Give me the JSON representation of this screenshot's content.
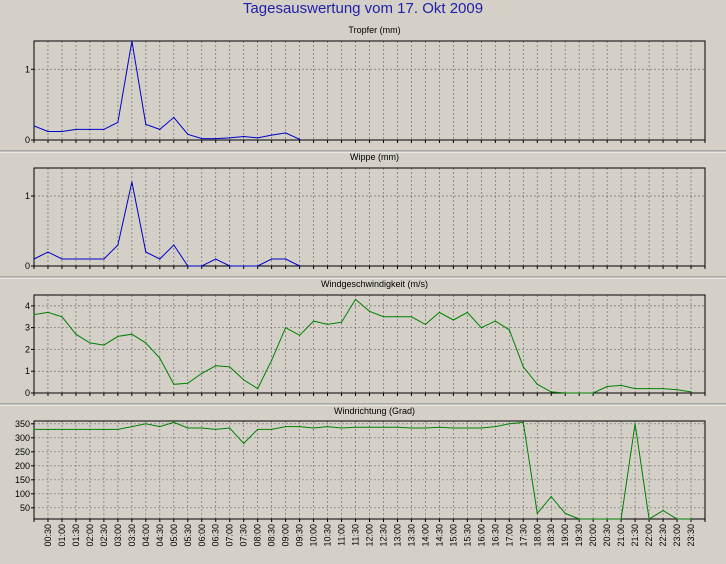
{
  "title": "Tagesauswertung vom 17. Okt 2009",
  "chart_data": [
    {
      "type": "line",
      "title": "Tropfer (mm)",
      "x": [
        "00:00",
        "00:30",
        "01:00",
        "01:30",
        "02:00",
        "02:30",
        "03:00",
        "03:30",
        "04:00",
        "04:30",
        "05:00",
        "05:30",
        "06:00",
        "06:30",
        "07:00",
        "07:30",
        "08:00",
        "08:30",
        "09:00",
        "09:30"
      ],
      "series": [
        {
          "values": [
            0.2,
            0.12,
            0.12,
            0.15,
            0.15,
            0.15,
            0.25,
            1.4,
            0.22,
            0.15,
            0.32,
            0.08,
            0.02,
            0.02,
            0.03,
            0.05,
            0.03,
            0.07,
            0.1,
            0.01
          ]
        }
      ],
      "ylim": [
        0,
        1.4
      ],
      "yticks": [
        "0",
        "1"
      ],
      "ytick_values": [
        0,
        1
      ],
      "color": "#0000c8"
    },
    {
      "type": "line",
      "title": "Wippe (mm)",
      "x": [
        "00:00",
        "00:30",
        "01:00",
        "01:30",
        "02:00",
        "02:30",
        "03:00",
        "03:30",
        "04:00",
        "04:30",
        "05:00",
        "05:30",
        "06:00",
        "06:30",
        "07:00",
        "07:30",
        "08:00",
        "08:30",
        "09:00",
        "09:30"
      ],
      "series": [
        {
          "values": [
            0.1,
            0.2,
            0.1,
            0.1,
            0.1,
            0.1,
            0.3,
            1.2,
            0.2,
            0.1,
            0.3,
            0.0,
            0.0,
            0.1,
            0.0,
            0.0,
            0.0,
            0.1,
            0.1,
            0.0
          ]
        }
      ],
      "ylim": [
        0,
        1.4
      ],
      "yticks": [
        "0",
        "1"
      ],
      "ytick_values": [
        0,
        1
      ],
      "color": "#0000c8"
    },
    {
      "type": "line",
      "title": "Windgeschwindigkeit (m/s)",
      "x": [
        "00:00",
        "00:30",
        "01:00",
        "01:30",
        "02:00",
        "02:30",
        "03:00",
        "03:30",
        "04:00",
        "04:30",
        "05:00",
        "05:30",
        "06:00",
        "06:30",
        "07:00",
        "07:30",
        "08:00",
        "08:30",
        "09:00",
        "09:30",
        "10:00",
        "10:30",
        "11:00",
        "11:30",
        "12:00",
        "12:30",
        "13:00",
        "13:30",
        "14:00",
        "14:30",
        "15:00",
        "15:30",
        "16:00",
        "16:30",
        "17:00",
        "17:30",
        "18:00",
        "18:30",
        "19:00",
        "19:30",
        "20:00",
        "20:30",
        "21:00",
        "21:30",
        "22:00",
        "22:30",
        "23:00",
        "23:30"
      ],
      "series": [
        {
          "values": [
            3.6,
            3.7,
            3.5,
            2.7,
            2.3,
            2.2,
            2.6,
            2.7,
            2.3,
            1.6,
            0.4,
            0.45,
            0.9,
            1.25,
            1.2,
            0.6,
            0.2,
            1.5,
            3.0,
            2.65,
            3.3,
            3.15,
            3.25,
            4.3,
            3.75,
            3.5,
            3.5,
            3.5,
            3.15,
            3.7,
            3.35,
            3.7,
            3.0,
            3.3,
            2.9,
            1.2,
            0.4,
            0.05,
            0.0,
            0.0,
            0.0,
            0.3,
            0.35,
            0.2,
            0.2,
            0.2,
            0.15,
            0.05
          ]
        }
      ],
      "ylim": [
        0,
        4.5
      ],
      "yticks": [
        "0",
        "1",
        "2",
        "3",
        "4"
      ],
      "ytick_values": [
        0,
        1,
        2,
        3,
        4
      ],
      "color": "#008000"
    },
    {
      "type": "line",
      "title": "Windrichtung (Grad)",
      "x": [
        "00:00",
        "00:30",
        "01:00",
        "01:30",
        "02:00",
        "02:30",
        "03:00",
        "03:30",
        "04:00",
        "04:30",
        "05:00",
        "05:30",
        "06:00",
        "06:30",
        "07:00",
        "07:30",
        "08:00",
        "08:30",
        "09:00",
        "09:30",
        "10:00",
        "10:30",
        "11:00",
        "11:30",
        "12:00",
        "12:30",
        "13:00",
        "13:30",
        "14:00",
        "14:30",
        "15:00",
        "15:30",
        "16:00",
        "16:30",
        "17:00",
        "17:30",
        "18:00",
        "18:30",
        "19:00",
        "19:30",
        "20:00",
        "20:30",
        "21:00",
        "21:30",
        "22:00",
        "22:30",
        "23:00",
        "23:30"
      ],
      "series": [
        {
          "values": [
            330,
            330,
            330,
            330,
            330,
            330,
            330,
            340,
            350,
            340,
            355,
            335,
            335,
            330,
            335,
            280,
            330,
            330,
            340,
            340,
            335,
            340,
            335,
            338,
            338,
            338,
            338,
            335,
            335,
            338,
            335,
            335,
            335,
            340,
            350,
            355,
            30,
            90,
            30,
            10,
            10,
            10,
            10,
            350,
            10,
            40,
            10,
            10
          ]
        }
      ],
      "ylim": [
        10,
        360
      ],
      "yticks": [
        "50",
        "100",
        "150",
        "200",
        "250",
        "300",
        "350"
      ],
      "ytick_values": [
        50,
        100,
        150,
        200,
        250,
        300,
        350
      ],
      "color": "#008000"
    }
  ],
  "x_axis_labels": [
    "00:30",
    "01:00",
    "01:30",
    "02:00",
    "02:30",
    "03:00",
    "03:30",
    "04:00",
    "04:30",
    "05:00",
    "05:30",
    "06:00",
    "06:30",
    "07:00",
    "07:30",
    "08:00",
    "08:30",
    "09:00",
    "09:30",
    "10:00",
    "10:30",
    "11:00",
    "11:30",
    "12:00",
    "12:30",
    "13:00",
    "13:30",
    "14:00",
    "14:30",
    "15:00",
    "15:30",
    "16:00",
    "16:30",
    "17:00",
    "17:30",
    "18:00",
    "18:30",
    "19:00",
    "19:30",
    "20:00",
    "20:30",
    "21:00",
    "21:30",
    "22:00",
    "22:30",
    "23:00",
    "23:30"
  ]
}
